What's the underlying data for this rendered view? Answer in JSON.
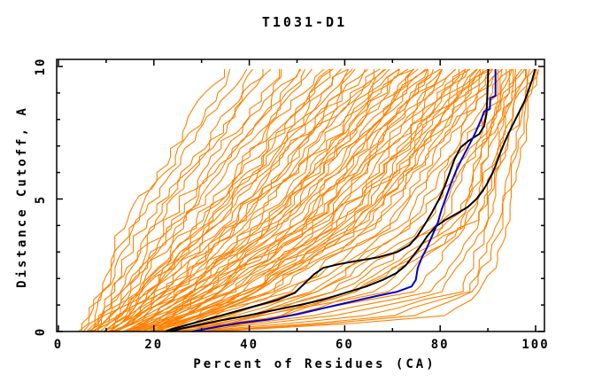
{
  "chart_data": {
    "type": "line",
    "title": "T1031-D1",
    "xlabel": "Percent of Residues (CA)",
    "ylabel": "Distance Cutoff, A",
    "xlim": [
      -0.4,
      101.9
    ],
    "ylim": [
      0,
      10.27
    ],
    "grid": false,
    "legend": "none",
    "axis_style": "full-box-with-mirrored-ticks",
    "xticks_major": [
      0,
      20,
      40,
      60,
      80,
      100
    ],
    "xtick_labels": [
      "0",
      "20",
      "40",
      "60",
      "80",
      "100"
    ],
    "xticks_minor": [
      10,
      30,
      50,
      70,
      90
    ],
    "yticks_major": [
      0,
      5,
      10
    ],
    "ytick_labels": [
      "0",
      "5",
      "10"
    ],
    "yticks_minor": [
      1,
      2,
      3,
      4,
      6,
      7,
      8,
      9
    ],
    "colors": {
      "ensemble": "#ff8100",
      "highlight_black": "#000000",
      "highlight_blue": "#0000cd",
      "axis": "#000000",
      "background": "#ffffff"
    },
    "series": [
      {
        "name": "highlight-model-black-1",
        "color": "#000000",
        "width": 2,
        "points": [
          [
            22.5,
            0
          ],
          [
            24,
            0.1
          ],
          [
            27,
            0.25
          ],
          [
            31,
            0.45
          ],
          [
            36,
            0.7
          ],
          [
            41,
            0.95
          ],
          [
            46,
            1.2
          ],
          [
            49.5,
            1.45
          ],
          [
            51.5,
            1.8
          ],
          [
            53.5,
            2.15
          ],
          [
            55.5,
            2.4
          ],
          [
            59,
            2.55
          ],
          [
            63,
            2.68
          ],
          [
            67,
            2.8
          ],
          [
            71,
            3.0
          ],
          [
            73.5,
            3.25
          ],
          [
            75.2,
            3.6
          ],
          [
            76.8,
            4.05
          ],
          [
            78.3,
            4.5
          ],
          [
            79.8,
            5.0
          ],
          [
            81,
            5.5
          ],
          [
            82,
            6.0
          ],
          [
            83,
            6.5
          ],
          [
            84.3,
            6.95
          ],
          [
            86,
            7.2
          ],
          [
            88.2,
            7.45
          ],
          [
            89.2,
            7.75
          ],
          [
            89.7,
            8.2
          ],
          [
            89.9,
            9.0
          ],
          [
            90.1,
            9.9
          ]
        ]
      },
      {
        "name": "highlight-model-black-2",
        "color": "#000000",
        "width": 2,
        "points": [
          [
            23.5,
            0
          ],
          [
            26,
            0.12
          ],
          [
            29.5,
            0.25
          ],
          [
            34,
            0.42
          ],
          [
            39.5,
            0.6
          ],
          [
            45,
            0.8
          ],
          [
            50.5,
            1.0
          ],
          [
            55.5,
            1.2
          ],
          [
            60,
            1.45
          ],
          [
            64.5,
            1.7
          ],
          [
            68,
            1.95
          ],
          [
            70.8,
            2.2
          ],
          [
            72.8,
            2.5
          ],
          [
            74.3,
            2.85
          ],
          [
            75.8,
            3.2
          ],
          [
            77.3,
            3.6
          ],
          [
            79,
            3.95
          ],
          [
            81,
            4.2
          ],
          [
            83.5,
            4.45
          ],
          [
            85.8,
            4.7
          ],
          [
            87.6,
            5.0
          ],
          [
            88.9,
            5.3
          ],
          [
            89.9,
            5.6
          ],
          [
            90.9,
            5.95
          ],
          [
            91.7,
            6.3
          ],
          [
            92.5,
            6.7
          ],
          [
            93.4,
            7.1
          ],
          [
            94.4,
            7.5
          ],
          [
            95.5,
            7.9
          ],
          [
            96.6,
            8.3
          ],
          [
            97.7,
            8.7
          ],
          [
            98.5,
            9.1
          ],
          [
            99.3,
            9.5
          ],
          [
            99.9,
            9.9
          ]
        ]
      },
      {
        "name": "highlight-model-blue",
        "color": "#0000cd",
        "width": 2,
        "points": [
          [
            28,
            0
          ],
          [
            31,
            0.1
          ],
          [
            34,
            0.2
          ],
          [
            38,
            0.32
          ],
          [
            44,
            0.45
          ],
          [
            50,
            0.65
          ],
          [
            56,
            0.9
          ],
          [
            62,
            1.15
          ],
          [
            67,
            1.35
          ],
          [
            71,
            1.5
          ],
          [
            74,
            1.7
          ],
          [
            74.9,
            1.95
          ],
          [
            75.3,
            2.4
          ],
          [
            76.2,
            2.8
          ],
          [
            77.2,
            3.15
          ],
          [
            78.3,
            3.6
          ],
          [
            79.5,
            4.1
          ],
          [
            80.3,
            4.6
          ],
          [
            81.3,
            5.1
          ],
          [
            82.3,
            5.6
          ],
          [
            83.3,
            6.05
          ],
          [
            84.5,
            6.5
          ],
          [
            85.8,
            6.95
          ],
          [
            87,
            7.35
          ],
          [
            88,
            7.75
          ],
          [
            88.7,
            8.05
          ],
          [
            89.2,
            8.3
          ],
          [
            90.4,
            8.4
          ],
          [
            90.5,
            8.8
          ],
          [
            91.6,
            8.9
          ],
          [
            91.6,
            9.9
          ]
        ]
      }
    ],
    "ensemble": {
      "name": "server-model-curves",
      "color": "#ff8100",
      "width": 1.1,
      "count": 80,
      "anchor_cutoffs": [
        0,
        0.5,
        1.5,
        4,
        9.9
      ],
      "curves": [
        [
          4.5,
          6,
          8,
          13,
          35,
          11
        ],
        [
          5,
          6.5,
          9,
          15,
          37,
          23
        ],
        [
          5.5,
          7.5,
          10,
          16,
          39,
          35
        ],
        [
          6,
          8,
          11,
          18,
          41,
          47
        ],
        [
          6,
          8.5,
          11.5,
          19,
          43,
          59
        ],
        [
          6.5,
          9,
          12,
          20,
          44,
          71
        ],
        [
          7,
          9.5,
          13,
          22,
          46,
          83
        ],
        [
          7.5,
          10,
          14,
          23,
          48,
          95
        ],
        [
          8,
          10.5,
          14.5,
          24,
          50,
          107
        ],
        [
          8,
          11,
          15,
          25,
          51,
          119
        ],
        [
          8.5,
          11.5,
          16,
          26,
          53,
          131
        ],
        [
          9,
          12,
          17,
          28,
          55,
          143
        ],
        [
          9.5,
          12.5,
          17.5,
          29,
          57,
          155
        ],
        [
          10,
          13,
          18,
          30,
          58,
          167
        ],
        [
          10,
          13.5,
          19,
          31,
          60,
          179
        ],
        [
          10.5,
          14,
          19.5,
          32,
          61,
          191
        ],
        [
          11,
          14.5,
          20,
          33,
          63,
          203
        ],
        [
          11,
          15,
          21,
          34,
          64,
          215
        ],
        [
          11.5,
          15.5,
          22,
          36,
          65,
          6
        ],
        [
          12,
          16,
          22.5,
          37,
          66,
          18
        ],
        [
          12,
          16.5,
          23,
          38,
          68,
          30
        ],
        [
          12.5,
          17,
          24,
          39,
          69,
          42
        ],
        [
          13,
          17.5,
          25,
          41,
          70,
          54
        ],
        [
          13,
          18,
          25.5,
          42,
          71,
          66
        ],
        [
          13.5,
          18.5,
          26,
          43,
          72,
          78
        ],
        [
          14,
          19,
          27,
          44,
          73,
          90
        ],
        [
          14,
          19.5,
          28,
          45,
          74,
          102
        ],
        [
          14.5,
          20,
          28.5,
          46,
          75,
          114
        ],
        [
          15,
          20.5,
          29,
          47,
          76,
          126
        ],
        [
          15,
          21,
          30,
          48,
          77,
          138
        ],
        [
          15.5,
          21.5,
          31,
          50,
          78,
          150
        ],
        [
          16,
          22,
          31.5,
          51,
          79,
          162
        ],
        [
          16.5,
          22.5,
          32,
          52,
          80,
          174
        ],
        [
          17,
          23,
          33,
          53,
          81,
          186
        ],
        [
          17,
          24,
          34,
          54,
          82,
          198
        ],
        [
          17.5,
          24.5,
          35,
          56,
          83,
          210
        ],
        [
          18,
          25,
          36,
          57,
          84,
          222
        ],
        [
          18.5,
          26,
          37,
          58,
          85,
          234
        ],
        [
          19,
          26.5,
          38,
          59,
          85.5,
          246
        ],
        [
          19.5,
          27,
          39,
          60,
          86,
          258
        ],
        [
          20,
          28,
          40,
          61,
          87,
          270
        ],
        [
          21,
          29,
          41,
          62,
          87.5,
          282
        ],
        [
          21.5,
          30,
          42,
          63,
          88,
          294
        ],
        [
          22,
          31,
          43,
          64,
          88.5,
          306
        ],
        [
          16,
          24,
          40,
          62,
          89,
          7
        ],
        [
          17,
          25,
          42,
          64,
          89.5,
          19
        ],
        [
          18,
          27,
          44,
          66,
          90,
          31
        ],
        [
          19,
          28,
          45,
          67,
          91,
          43
        ],
        [
          20,
          30,
          47,
          69,
          91.5,
          55
        ],
        [
          21,
          31,
          48,
          70,
          92,
          67
        ],
        [
          22,
          33,
          50,
          72,
          93,
          79
        ],
        [
          23,
          34,
          52,
          74,
          93.5,
          91
        ],
        [
          24,
          36,
          54,
          75,
          94,
          103
        ],
        [
          25,
          37,
          55,
          77,
          95,
          115
        ],
        [
          26,
          39,
          57,
          79,
          96,
          127
        ],
        [
          27,
          40,
          58,
          80,
          96.5,
          139
        ],
        [
          28,
          42,
          60,
          82,
          97,
          151
        ],
        [
          29,
          44,
          62,
          83,
          98,
          163
        ],
        [
          30,
          45,
          63,
          85,
          99,
          175
        ],
        [
          31,
          47,
          65,
          86,
          100,
          187
        ],
        [
          20,
          40,
          70,
          84,
          93,
          14
        ],
        [
          22,
          45,
          74,
          86,
          94,
          28
        ],
        [
          24,
          50,
          78,
          88,
          95,
          42
        ],
        [
          26,
          56,
          81,
          89,
          96,
          56
        ],
        [
          28,
          62,
          84,
          90,
          97.5,
          70
        ],
        [
          30,
          68,
          86,
          91.5,
          98.5,
          84
        ],
        [
          32,
          74,
          87,
          92.5,
          99.5,
          98
        ],
        [
          33,
          80,
          89,
          94,
          100,
          112
        ],
        [
          7,
          10,
          16,
          30,
          52,
          9
        ],
        [
          9,
          13,
          20,
          36,
          59,
          21
        ],
        [
          11,
          16,
          24,
          41,
          66,
          33
        ],
        [
          13,
          19,
          28,
          46,
          72,
          45
        ],
        [
          15,
          22,
          32,
          51,
          77,
          57
        ],
        [
          17,
          25,
          36,
          55,
          81,
          69
        ],
        [
          19,
          28,
          40,
          59,
          84,
          81
        ],
        [
          12,
          17,
          26,
          44,
          69,
          93
        ],
        [
          10,
          14,
          22,
          38,
          62,
          105
        ],
        [
          8,
          12,
          18,
          33,
          56,
          117
        ],
        [
          14,
          20,
          30,
          49,
          75,
          129
        ],
        [
          16,
          23,
          34,
          53,
          79,
          141
        ]
      ]
    }
  }
}
